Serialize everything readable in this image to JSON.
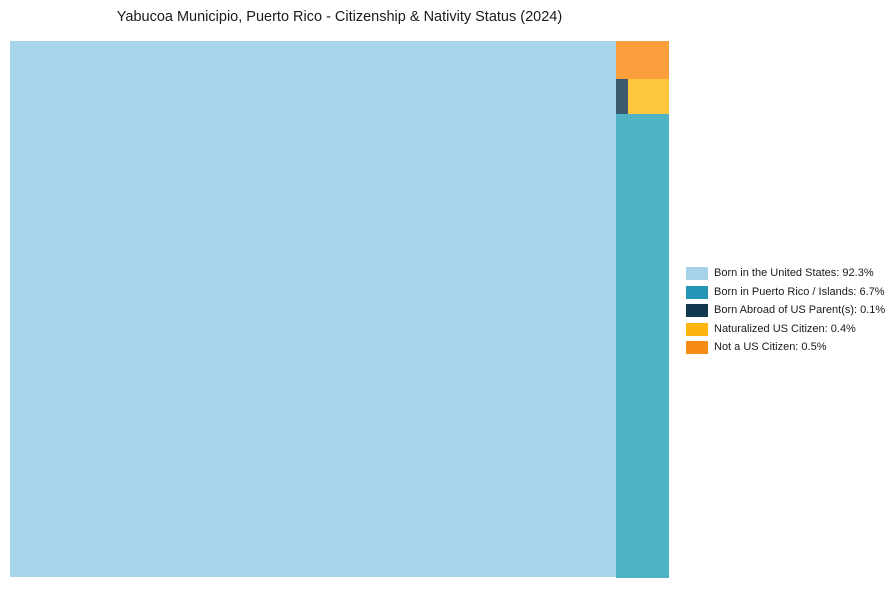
{
  "title": "Yabucoa Municipio, Puerto Rico - Citizenship & Nativity Status (2024)",
  "chart_data": {
    "type": "treemap",
    "title": "Yabucoa Municipio, Puerto Rico - Citizenship & Nativity Status (2024)",
    "unit": "%",
    "legend_position": "right",
    "categories": [
      "Born in the United States",
      "Born in Puerto Rico / Islands",
      "Born Abroad of US Parent(s)",
      "Naturalized US Citizen",
      "Not a US Citizen"
    ],
    "values": [
      92.3,
      6.7,
      0.1,
      0.4,
      0.5
    ],
    "items": [
      {
        "name": "Born in the United States",
        "value": 92.3,
        "legend_label": "Born in the United States: 92.3%",
        "legend_color": "#A5D2E8",
        "cell_color": "#A7D4EA"
      },
      {
        "name": "Born in Puerto Rico / Islands",
        "value": 6.7,
        "legend_label": "Born in Puerto Rico / Islands: 6.7%",
        "legend_color": "#2596B5",
        "cell_color": "#4FB3C6"
      },
      {
        "name": "Born Abroad of US Parent(s)",
        "value": 0.1,
        "legend_label": "Born Abroad of US Parent(s): 0.1%",
        "legend_color": "#12384F",
        "cell_color": "#3B5A6E"
      },
      {
        "name": "Naturalized US Citizen",
        "value": 0.4,
        "legend_label": "Naturalized US Citizen: 0.4%",
        "legend_color": "#FDB40E",
        "cell_color": "#FEC63D"
      },
      {
        "name": "Not a US Citizen",
        "value": 0.5,
        "legend_label": "Not a US Citizen: 0.5%",
        "legend_color": "#F78C15",
        "cell_color": "#FA9F3B"
      }
    ]
  }
}
